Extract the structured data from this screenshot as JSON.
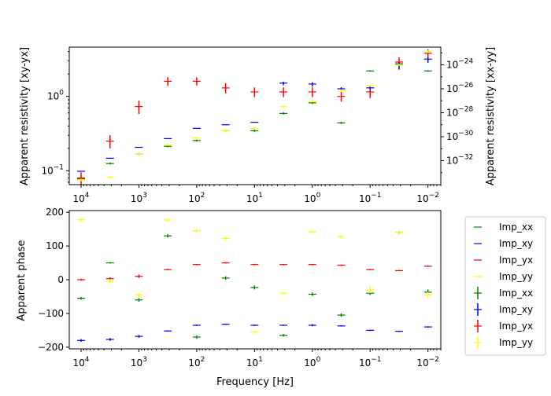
{
  "chart_data": [
    {
      "type": "scatter",
      "panel": "top",
      "xlabel": "",
      "ylabel_left": "Apparent resistivity [xy-yx]",
      "ylabel_right": "Apparent resistivity [xx-yy]",
      "xscale": "log",
      "x_inverted": true,
      "xlim": [
        16000,
        0.006
      ],
      "ylim_left": [
        0.065,
        4.6
      ],
      "yscale_left": "log",
      "ylim_right": [
        1e-34,
        3e-23
      ],
      "yscale_right": "log",
      "x_ticks": [
        {
          "v": 10000,
          "base": "10",
          "exp": "4"
        },
        {
          "v": 1000,
          "base": "10",
          "exp": "3"
        },
        {
          "v": 100,
          "base": "10",
          "exp": "2"
        },
        {
          "v": 10,
          "base": "10",
          "exp": "1"
        },
        {
          "v": 1,
          "base": "10",
          "exp": "0"
        },
        {
          "v": 0.1,
          "base": "10",
          "exp": "−1"
        },
        {
          "v": 0.01,
          "base": "10",
          "exp": "−2"
        }
      ],
      "y_ticks_left": [
        {
          "v": 0.1,
          "base": "10",
          "exp": "−1"
        },
        {
          "v": 1,
          "base": "10",
          "exp": "0"
        }
      ],
      "y_ticks_right": [
        {
          "v": 1e-32,
          "base": "10",
          "exp": "−32"
        },
        {
          "v": 1e-30,
          "base": "10",
          "exp": "−30"
        },
        {
          "v": 1e-28,
          "base": "10",
          "exp": "−28"
        },
        {
          "v": 1e-26,
          "base": "10",
          "exp": "−26"
        },
        {
          "v": 1e-24,
          "base": "10",
          "exp": "−24"
        }
      ],
      "x": [
        10000,
        3160,
        1000,
        316,
        100,
        31.6,
        10,
        3.16,
        1,
        0.316,
        0.1,
        0.0316,
        0.01
      ],
      "series": [
        {
          "name": "Imp_xx",
          "color": "#008000",
          "axis": "left",
          "values": [
            0.078,
            0.125,
            0.168,
            0.213,
            0.255,
            0.345,
            0.345,
            0.59,
            0.82,
            0.44,
            2.2,
            2.75,
            2.2
          ],
          "err": [
            0.004,
            0.004,
            0.005,
            0.006,
            0.008,
            0.012,
            0.012,
            0.02,
            0.03,
            0.015,
            0.05,
            0.1,
            0.05
          ]
        },
        {
          "name": "Imp_yx",
          "color": "#ff0000",
          "axis": "left",
          "values": [
            0.08,
            0.25,
            0.73,
            1.6,
            1.6,
            1.3,
            1.15,
            1.15,
            1.15,
            1.0,
            1.15,
            2.9,
            3.8
          ],
          "err": [
            0.015,
            0.05,
            0.15,
            0.22,
            0.2,
            0.2,
            0.17,
            0.17,
            0.17,
            0.15,
            0.2,
            0.45,
            0.5
          ]
        },
        {
          "name": "Imp_xy",
          "color": "#0000ff",
          "axis": "right",
          "values": [
            1.3e-33,
            1.6e-32,
            1.3e-31,
            7e-31,
            5e-30,
            1e-29,
            1.6e-29,
            3e-26,
            2.5e-26,
            1e-26,
            1.2e-26,
            1e-24,
            3e-24
          ],
          "err": [
            0,
            0,
            0,
            0,
            0,
            0,
            0,
            1e-26,
            1e-26,
            3.5e-27,
            4e-27,
            6e-25,
            1.5e-24
          ]
        },
        {
          "name": "Imp_yy",
          "color": "#ffff00",
          "axis": "left",
          "values": [
            0.075,
            0.082,
            0.168,
            0.222,
            0.275,
            0.345,
            0.37,
            0.73,
            0.86,
            1.2,
            1.4,
            2.65,
            4.0
          ],
          "err": [
            0.003,
            0.003,
            0.004,
            0.006,
            0.008,
            0.012,
            0.015,
            0.02,
            0.03,
            0.04,
            0.05,
            0.1,
            0.15
          ]
        }
      ]
    },
    {
      "type": "scatter",
      "panel": "bottom",
      "xlabel": "Frequency [Hz]",
      "ylabel": "Apparent phase",
      "xscale": "log",
      "x_inverted": true,
      "xlim": [
        16000,
        0.006
      ],
      "ylim": [
        -205,
        205
      ],
      "y_ticks": [
        -200,
        -100,
        0,
        100,
        200
      ],
      "x": [
        10000,
        3160,
        1000,
        316,
        100,
        31.6,
        10,
        3.16,
        1,
        0.316,
        0.1,
        0.0316,
        0.01
      ],
      "legend_position": "outside-right",
      "legend": [
        {
          "label": "Imp_xx",
          "kind": "line",
          "color": "#008000"
        },
        {
          "label": "Imp_xy",
          "kind": "line",
          "color": "#0000ff"
        },
        {
          "label": "Imp_yx",
          "kind": "line",
          "color": "#ff0000"
        },
        {
          "label": "Imp_yy",
          "kind": "line",
          "color": "#ffff00"
        },
        {
          "label": "Imp_xx",
          "kind": "errorbar",
          "color": "#008000"
        },
        {
          "label": "Imp_xy",
          "kind": "errorbar",
          "color": "#0000ff"
        },
        {
          "label": "Imp_yx",
          "kind": "errorbar",
          "color": "#ff0000"
        },
        {
          "label": "Imp_yy",
          "kind": "errorbar",
          "color": "#ffff00"
        }
      ],
      "series": [
        {
          "name": "Imp_xx",
          "color": "#008000",
          "values": [
            -55,
            50,
            -60,
            130,
            -170,
            5,
            -23,
            -165,
            -43,
            -105,
            -40,
            140,
            -37
          ],
          "err": [
            4,
            2,
            5,
            5,
            5,
            5,
            6,
            4,
            5,
            5,
            5,
            4,
            8
          ]
        },
        {
          "name": "Imp_xy",
          "color": "#0000ff",
          "values": [
            -180,
            -177,
            -168,
            -152,
            -135,
            -132,
            -135,
            -135,
            -135,
            -137,
            -150,
            -153,
            -140
          ],
          "err": [
            4,
            4,
            4,
            2,
            2,
            2,
            2,
            2,
            3,
            2,
            2,
            2,
            2
          ]
        },
        {
          "name": "Imp_yx",
          "color": "#ff0000",
          "values": [
            0,
            3,
            10,
            30,
            45,
            50,
            45,
            45,
            45,
            43,
            30,
            27,
            40
          ],
          "err": [
            3,
            4,
            5,
            2,
            2,
            2,
            2,
            2,
            2,
            2,
            2,
            2,
            2
          ]
        },
        {
          "name": "Imp_yy",
          "color": "#ffff00",
          "values": [
            178,
            -5,
            -45,
            177,
            145,
            122,
            -155,
            -40,
            142,
            128,
            -30,
            140,
            -45
          ],
          "err": [
            4,
            6,
            6,
            5,
            6,
            6,
            3,
            4,
            4,
            4,
            10,
            4,
            8
          ]
        }
      ]
    }
  ]
}
